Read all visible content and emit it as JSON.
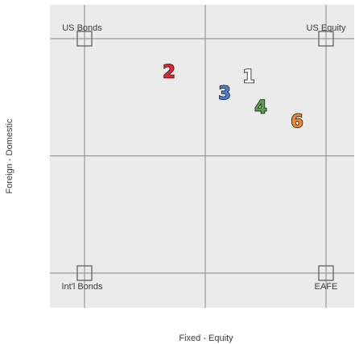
{
  "chart_data": {
    "type": "scatter",
    "title": "",
    "xlabel": "Fixed - Equity",
    "ylabel": "Foreign - Domestic",
    "xlim": [
      0,
      1
    ],
    "ylim": [
      0,
      1
    ],
    "grid": true,
    "anchors": [
      {
        "label": "US Bonds",
        "x": 0,
        "y": 1
      },
      {
        "label": "US Equity",
        "x": 1,
        "y": 1
      },
      {
        "label": "Int'l Bonds",
        "x": 0,
        "y": 0
      },
      {
        "label": "EAFE",
        "x": 1,
        "y": 0
      }
    ],
    "points": [
      {
        "label": "1",
        "x": 0.68,
        "y": 0.84,
        "color": "#ffffff"
      },
      {
        "label": "2",
        "x": 0.35,
        "y": 0.86,
        "color": "#e8262a"
      },
      {
        "label": "3",
        "x": 0.58,
        "y": 0.77,
        "color": "#4b7fd6"
      },
      {
        "label": "4",
        "x": 0.73,
        "y": 0.71,
        "color": "#5aa04a"
      },
      {
        "label": "6",
        "x": 0.88,
        "y": 0.65,
        "color": "#f08a24"
      }
    ]
  }
}
